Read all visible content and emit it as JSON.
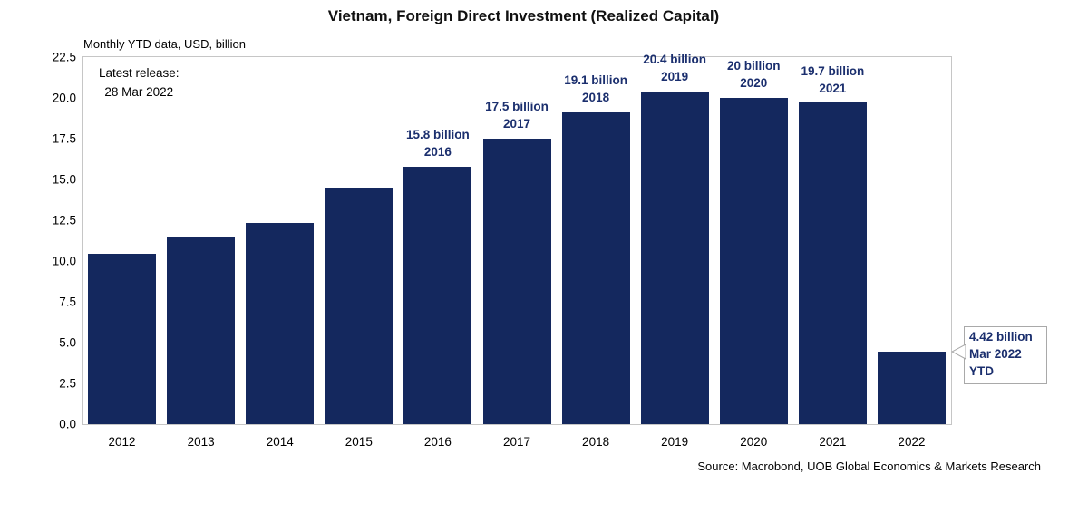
{
  "title": "Vietnam, Foreign Direct Investment (Realized Capital)",
  "subtitle": "Monthly YTD data, USD, billion",
  "annotation": {
    "line1": "Latest release:",
    "line2": "28 Mar 2022"
  },
  "source": "Source: Macrobond, UOB Global Economics & Markets Research",
  "callout": {
    "lines": [
      "4.42 billion",
      "Mar 2022",
      "YTD"
    ]
  },
  "colors": {
    "bar": "#14285e",
    "label_text": "#1b2f6e",
    "axis_text": "#000000",
    "plot_border": "#c6c6c6",
    "callout_border": "#a9a9a9"
  },
  "chart_data": {
    "type": "bar",
    "title": "Vietnam, Foreign Direct Investment (Realized Capital)",
    "subtitle": "Monthly YTD data, USD, billion",
    "units": "USD billion",
    "categories": [
      "2012",
      "2013",
      "2014",
      "2015",
      "2016",
      "2017",
      "2018",
      "2019",
      "2020",
      "2021",
      "2022"
    ],
    "values": [
      10.45,
      11.5,
      12.35,
      14.5,
      15.8,
      17.5,
      19.1,
      20.4,
      20.0,
      19.7,
      4.42
    ],
    "ylim": [
      0,
      22.5
    ],
    "ytick_labels": [
      "0.0",
      "2.5",
      "5.0",
      "7.5",
      "10.0",
      "12.5",
      "15.0",
      "17.5",
      "20.0",
      "22.5"
    ],
    "grid": false,
    "legend": "none",
    "bar_annotations": [
      {
        "category": "2016",
        "lines": [
          "15.8 billion",
          "2016"
        ]
      },
      {
        "category": "2017",
        "lines": [
          "17.5 billion",
          "2017"
        ]
      },
      {
        "category": "2018",
        "lines": [
          "19.1 billion",
          "2018"
        ]
      },
      {
        "category": "2019",
        "lines": [
          "20.4 billion",
          "2019"
        ]
      },
      {
        "category": "2020",
        "lines": [
          "20 billion",
          "2020"
        ]
      },
      {
        "category": "2021",
        "lines": [
          "19.7 billion",
          "2021"
        ]
      }
    ],
    "callout_annotation": {
      "category": "2022",
      "lines": [
        "4.42 billion",
        "Mar 2022",
        "YTD"
      ]
    }
  }
}
